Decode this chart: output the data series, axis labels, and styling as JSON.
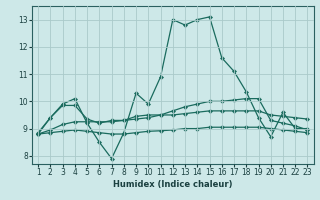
{
  "xlabel": "Humidex (Indice chaleur)",
  "background_color": "#cde8e8",
  "grid_color": "#aacaca",
  "line_color": "#1a6b5e",
  "xlim_min": 0.5,
  "xlim_max": 23.5,
  "ylim_min": 7.7,
  "ylim_max": 13.5,
  "yticks": [
    8,
    9,
    10,
    11,
    12,
    13
  ],
  "xticks": [
    1,
    2,
    3,
    4,
    5,
    6,
    7,
    8,
    9,
    10,
    11,
    12,
    13,
    14,
    15,
    16,
    17,
    18,
    19,
    20,
    21,
    22,
    23
  ],
  "series": [
    [
      8.8,
      9.4,
      9.9,
      10.1,
      9.2,
      8.5,
      7.9,
      8.85,
      10.3,
      9.9,
      10.9,
      13.0,
      12.8,
      13.0,
      13.1,
      11.6,
      11.1,
      10.35,
      9.4,
      8.7,
      9.6,
      9.0,
      9.0
    ],
    [
      8.85,
      9.4,
      9.85,
      9.85,
      9.35,
      9.2,
      9.3,
      9.3,
      9.45,
      9.5,
      9.5,
      9.5,
      9.55,
      9.6,
      9.65,
      9.65,
      9.65,
      9.65,
      9.65,
      9.5,
      9.45,
      9.4,
      9.35
    ],
    [
      8.8,
      8.95,
      9.15,
      9.25,
      9.25,
      9.25,
      9.25,
      9.3,
      9.35,
      9.4,
      9.5,
      9.65,
      9.8,
      9.9,
      10.0,
      10.0,
      10.05,
      10.1,
      10.1,
      9.3,
      9.2,
      9.1,
      8.95
    ],
    [
      8.8,
      8.85,
      8.9,
      8.95,
      8.9,
      8.85,
      8.8,
      8.8,
      8.85,
      8.9,
      8.92,
      8.95,
      9.0,
      9.0,
      9.05,
      9.05,
      9.05,
      9.05,
      9.05,
      9.0,
      8.95,
      8.9,
      8.85
    ]
  ]
}
